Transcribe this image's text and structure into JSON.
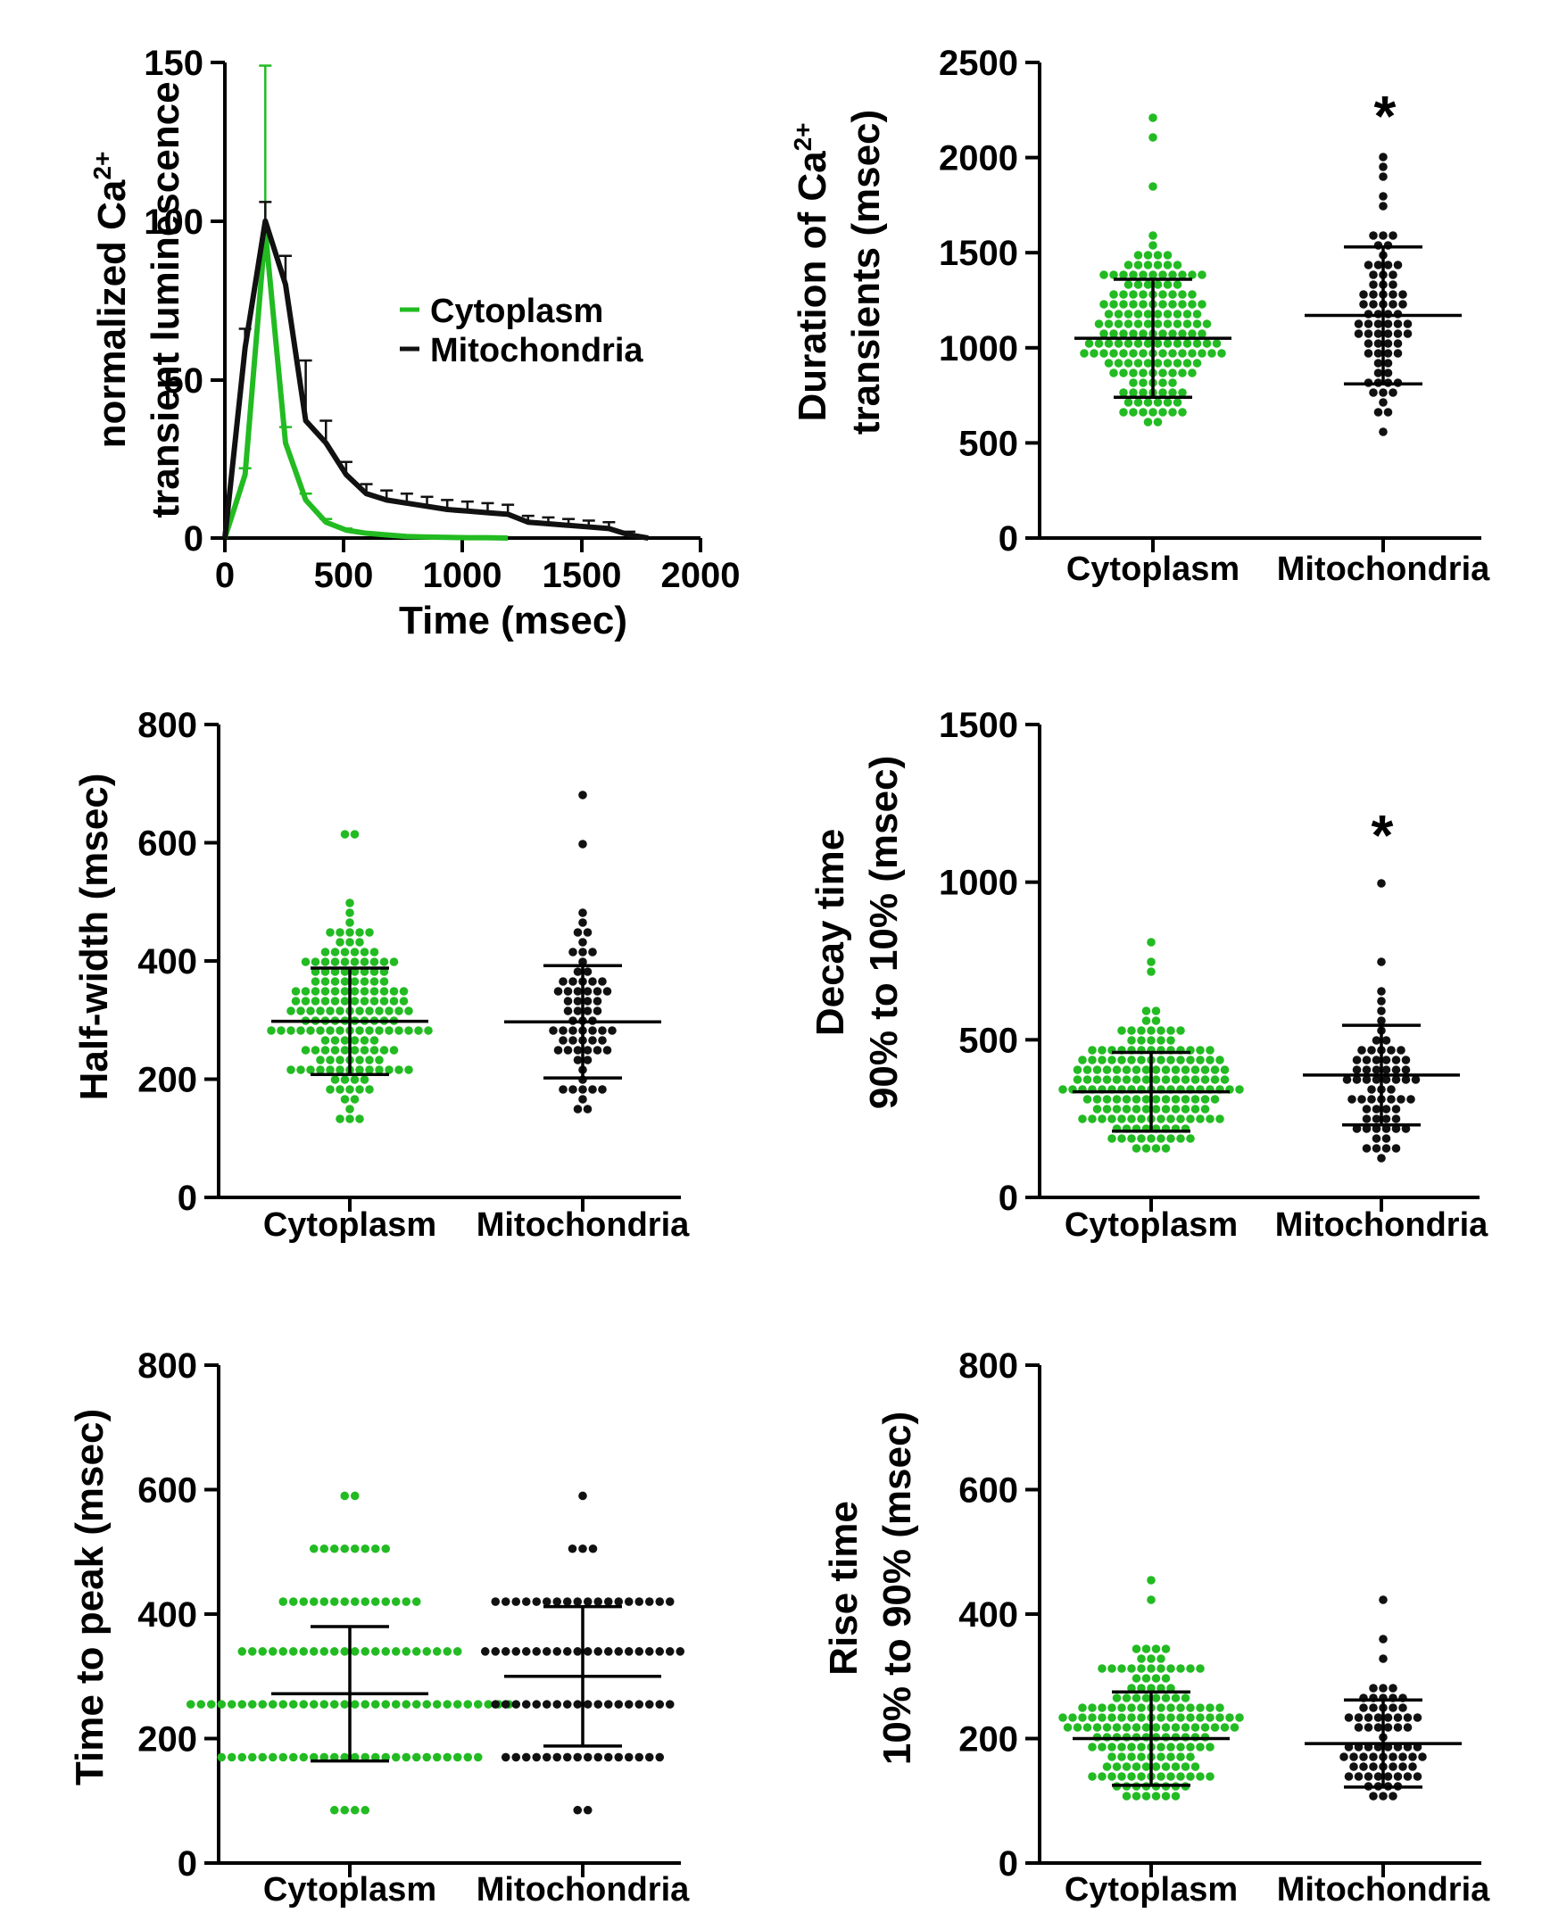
{
  "colors": {
    "cytoplasm": "#22bb22",
    "mitochondria": "#111111",
    "axis": "#000000"
  },
  "chart_data": [
    {
      "id": "panel-timecourse",
      "type": "line",
      "ylabel_lines": [
        "normalized Ca",
        "transient luminescence"
      ],
      "ylabel_sup": "2+",
      "xlabel": "Time (msec)",
      "xlim": [
        0,
        2000
      ],
      "ylim": [
        0,
        150
      ],
      "xticks": [
        "0",
        "500",
        "1000",
        "1500",
        "2000"
      ],
      "yticks": [
        "0",
        "50",
        "100",
        "150"
      ],
      "legend": {
        "position": "center",
        "entries": [
          "Cytoplasm",
          "Mitochondria"
        ]
      },
      "series": [
        {
          "name": "Cytoplasm",
          "x": [
            0,
            85,
            170,
            255,
            340,
            425,
            510,
            595,
            680,
            765,
            850,
            935,
            1020,
            1105,
            1190
          ],
          "y": [
            0,
            20,
            97,
            30,
            12,
            5,
            2.5,
            1.5,
            1,
            0.5,
            0.3,
            0.2,
            0.1,
            0.1,
            0
          ],
          "err": [
            0,
            2,
            52,
            5,
            2,
            1,
            0.5,
            0,
            0,
            0,
            0,
            0,
            0,
            0,
            0
          ]
        },
        {
          "name": "Mitochondria",
          "x": [
            0,
            85,
            170,
            255,
            340,
            425,
            510,
            595,
            680,
            765,
            850,
            935,
            1020,
            1105,
            1190,
            1275,
            1360,
            1445,
            1530,
            1615,
            1700,
            1780
          ],
          "y": [
            0,
            60,
            100,
            80,
            37,
            30,
            20,
            14,
            12,
            11,
            10,
            9,
            8.5,
            8,
            7.5,
            5,
            4.5,
            4,
            3.5,
            3,
            1,
            0
          ],
          "err": [
            0,
            6,
            6,
            9,
            19,
            7,
            4,
            3,
            3,
            3,
            3,
            3,
            3,
            3,
            3,
            2,
            2,
            2,
            2,
            2,
            1,
            0
          ]
        }
      ]
    },
    {
      "id": "panel-duration",
      "type": "scatter",
      "ylabel_lines": [
        "Duration of Ca",
        "transients (msec)"
      ],
      "ylabel_sup": "2+",
      "ylim": [
        0,
        2500
      ],
      "yticks": [
        "0",
        "500",
        "1000",
        "1500",
        "2000",
        "2500"
      ],
      "categories": [
        "Cytoplasm",
        "Mitochondria"
      ],
      "annotation": "*",
      "series": [
        {
          "name": "Cytoplasm",
          "n": 160,
          "mean": 1050,
          "sd": 310,
          "lo": 600,
          "hi": 1800,
          "highs": [
            2200,
            2100,
            1850
          ]
        },
        {
          "name": "Mitochondria",
          "n": 70,
          "mean": 1170,
          "sd": 360,
          "lo": 510,
          "hi": 1800,
          "highs": [
            2020,
            1950,
            1900
          ]
        }
      ]
    },
    {
      "id": "panel-halfwidth",
      "type": "scatter",
      "ylabel_lines": [
        "Half-width (msec)"
      ],
      "ylim": [
        0,
        800
      ],
      "yticks": [
        "0",
        "200",
        "400",
        "600",
        "800"
      ],
      "categories": [
        "Cytoplasm",
        "Mitochondria"
      ],
      "series": [
        {
          "name": "Cytoplasm",
          "n": 160,
          "mean": 298,
          "sd": 90,
          "lo": 130,
          "hi": 500,
          "highs": [
            620,
            615
          ]
        },
        {
          "name": "Mitochondria",
          "n": 65,
          "mean": 297,
          "sd": 95,
          "lo": 120,
          "hi": 480,
          "highs": [
            685,
            605
          ]
        }
      ]
    },
    {
      "id": "panel-decay",
      "type": "scatter",
      "ylabel_lines": [
        "Decay time",
        "90% to 10% (msec)"
      ],
      "ylim": [
        0,
        1500
      ],
      "yticks": [
        "0",
        "500",
        "1000",
        "1500"
      ],
      "categories": [
        "Cytoplasm",
        "Mitochondria"
      ],
      "annotation": "*",
      "series": [
        {
          "name": "Cytoplasm",
          "n": 160,
          "mean": 335,
          "sd": 125,
          "lo": 150,
          "hi": 620,
          "highs": [
            800,
            760,
            730
          ]
        },
        {
          "name": "Mitochondria",
          "n": 65,
          "mean": 388,
          "sd": 158,
          "lo": 120,
          "hi": 680,
          "highs": [
            995,
            735
          ]
        }
      ]
    },
    {
      "id": "panel-timetopeak",
      "type": "scatter",
      "ylabel_lines": [
        "Time to peak (msec)"
      ],
      "ylim": [
        0,
        800
      ],
      "yticks": [
        "0",
        "200",
        "400",
        "600",
        "800"
      ],
      "categories": [
        "Cytoplasm",
        "Mitochondria"
      ],
      "series": [
        {
          "name": "Cytoplasm",
          "mean": 272,
          "sd": 108,
          "levels": [
            [
              85,
              4
            ],
            [
              170,
              26
            ],
            [
              255,
              32
            ],
            [
              340,
              22
            ],
            [
              420,
              14
            ],
            [
              505,
              8
            ],
            [
              590,
              2
            ]
          ]
        },
        {
          "name": "Mitochondria",
          "mean": 300,
          "sd": 112,
          "levels": [
            [
              85,
              2
            ],
            [
              170,
              16
            ],
            [
              255,
              18
            ],
            [
              340,
              20
            ],
            [
              420,
              18
            ],
            [
              505,
              3
            ],
            [
              590,
              1
            ]
          ]
        }
      ]
    },
    {
      "id": "panel-risetime",
      "type": "scatter",
      "ylabel_lines": [
        "Rise time",
        "10% to 90% (msec)"
      ],
      "ylim": [
        0,
        800
      ],
      "yticks": [
        "0",
        "200",
        "400",
        "600",
        "800"
      ],
      "categories": [
        "Cytoplasm",
        "Mitochondria"
      ],
      "series": [
        {
          "name": "Cytoplasm",
          "n": 160,
          "mean": 200,
          "sd": 75,
          "lo": 100,
          "hi": 380,
          "highs": [
            450,
            420
          ]
        },
        {
          "name": "Mitochondria",
          "n": 70,
          "mean": 192,
          "sd": 70,
          "lo": 105,
          "hi": 330,
          "highs": [
            430,
            365
          ]
        }
      ]
    }
  ]
}
